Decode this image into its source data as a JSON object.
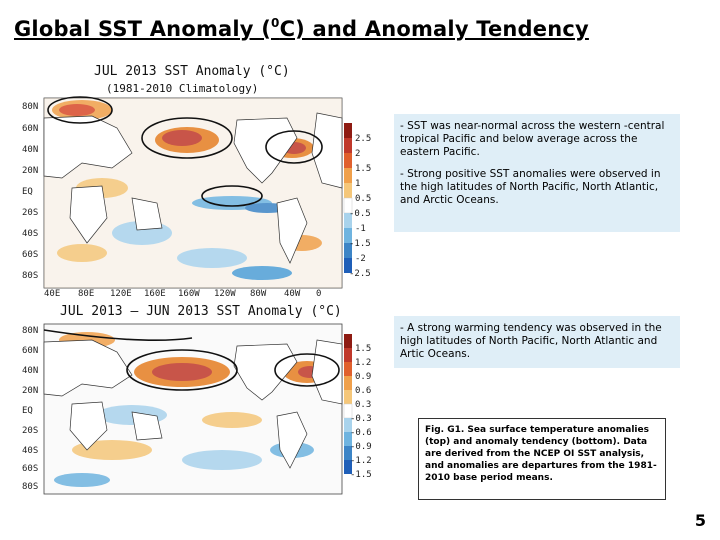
{
  "slide": {
    "title_main": "Global SST Anomaly (",
    "title_sup": "0",
    "title_rest": "C) and Anomaly Tendency",
    "page_number": "5"
  },
  "top_map": {
    "caption": "JUL 2013 SST Anomaly (°C)",
    "subcaption": "(1981-2010 Climatology)",
    "lat_labels": [
      "80N",
      "60N",
      "40N",
      "20N",
      "EQ",
      "20S",
      "40S",
      "60S",
      "80S"
    ],
    "lon_labels": [
      "40E",
      "80E",
      "120E",
      "160E",
      "160W",
      "120W",
      "80W",
      "40W",
      "0"
    ],
    "colorbar_labels": [
      "2.5",
      "2",
      "1.5",
      "1",
      "0.5",
      "-0.5",
      "-1",
      "-1.5",
      "-2",
      "-2.5"
    ]
  },
  "bottom_map": {
    "caption": "JUL 2013 — JUN 2013 SST Anomaly (°C)",
    "lat_labels": [
      "80N",
      "60N",
      "40N",
      "20N",
      "EQ",
      "20S",
      "40S",
      "60S",
      "80S"
    ],
    "colorbar_labels": [
      "1.5",
      "1.2",
      "0.9",
      "0.6",
      "0.3",
      "-0.3",
      "-0.6",
      "-0.9",
      "-1.2",
      "-1.5"
    ]
  },
  "text_boxes": {
    "box1_para1": "- SST was near-normal across the western -central tropical Pacific and below average across the eastern Pacific.",
    "box1_para2": "- Strong positive SST anomalies were observed in the high latitudes of North Pacific, North Atlantic, and Arctic Oceans.",
    "box2_para1": "- A strong warming tendency was observed in the high latitudes of North Pacific, North Atlantic and Artic Oceans."
  },
  "figure_caption": "Fig. G1. Sea surface temperature anomalies (top) and anomaly tendency (bottom). Data are derived from the NCEP OI SST analysis, and anomalies are departures from the 1981-2010 base period means.",
  "colors": {
    "textbox_bg": "#dfeef7",
    "warm_dark": "#c0392b",
    "warm_mid": "#e67e22",
    "warm_light": "#f5c77a",
    "cool_light": "#a9d3ec",
    "cool_mid": "#4f9fd6",
    "cool_dark": "#1f5fb8",
    "land": "#ffffff"
  }
}
